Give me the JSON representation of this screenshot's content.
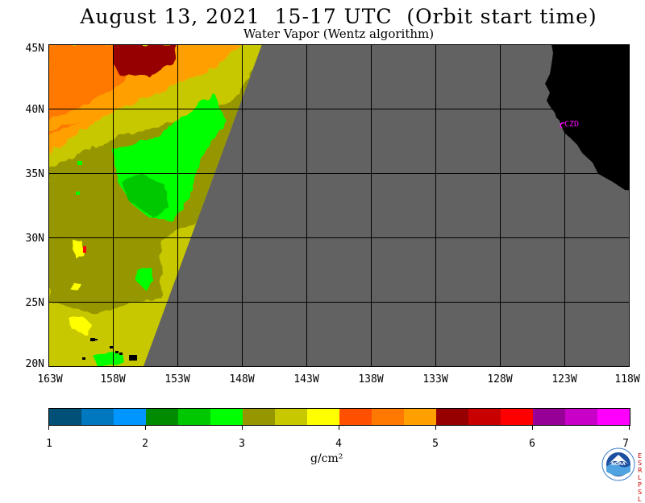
{
  "header": {
    "title": "August 13, 2021  15-17 UTC  (Orbit start time)",
    "subtitle": "Water Vapor (Wentz algorithm)"
  },
  "map": {
    "lat_labels": [
      "45N",
      "40N",
      "35N",
      "30N",
      "25N",
      "20N"
    ],
    "lon_labels": [
      "163W",
      "158W",
      "153W",
      "148W",
      "143W",
      "138W",
      "133W",
      "128W",
      "123W",
      "118W"
    ],
    "station_label": "CZD",
    "colors": {
      "no_data": "#626262",
      "land": "#000000",
      "station": "#ff00ff"
    }
  },
  "legend": {
    "colors": [
      "#005078",
      "#0078c0",
      "#0096ff",
      "#008c00",
      "#00c800",
      "#00ff00",
      "#969600",
      "#c8c800",
      "#ffff00",
      "#ff5000",
      "#ff7800",
      "#ffa000",
      "#960000",
      "#c80000",
      "#ff0000",
      "#960096",
      "#c800c8",
      "#ff00ff"
    ],
    "tick_labels": [
      "1",
      "2",
      "3",
      "4",
      "5",
      "6",
      "7"
    ],
    "unit": "g/cm²"
  },
  "logo": {
    "name": "NOAA",
    "side_text": [
      "E",
      "S",
      "R",
      "L",
      "P",
      "S",
      "L"
    ]
  }
}
